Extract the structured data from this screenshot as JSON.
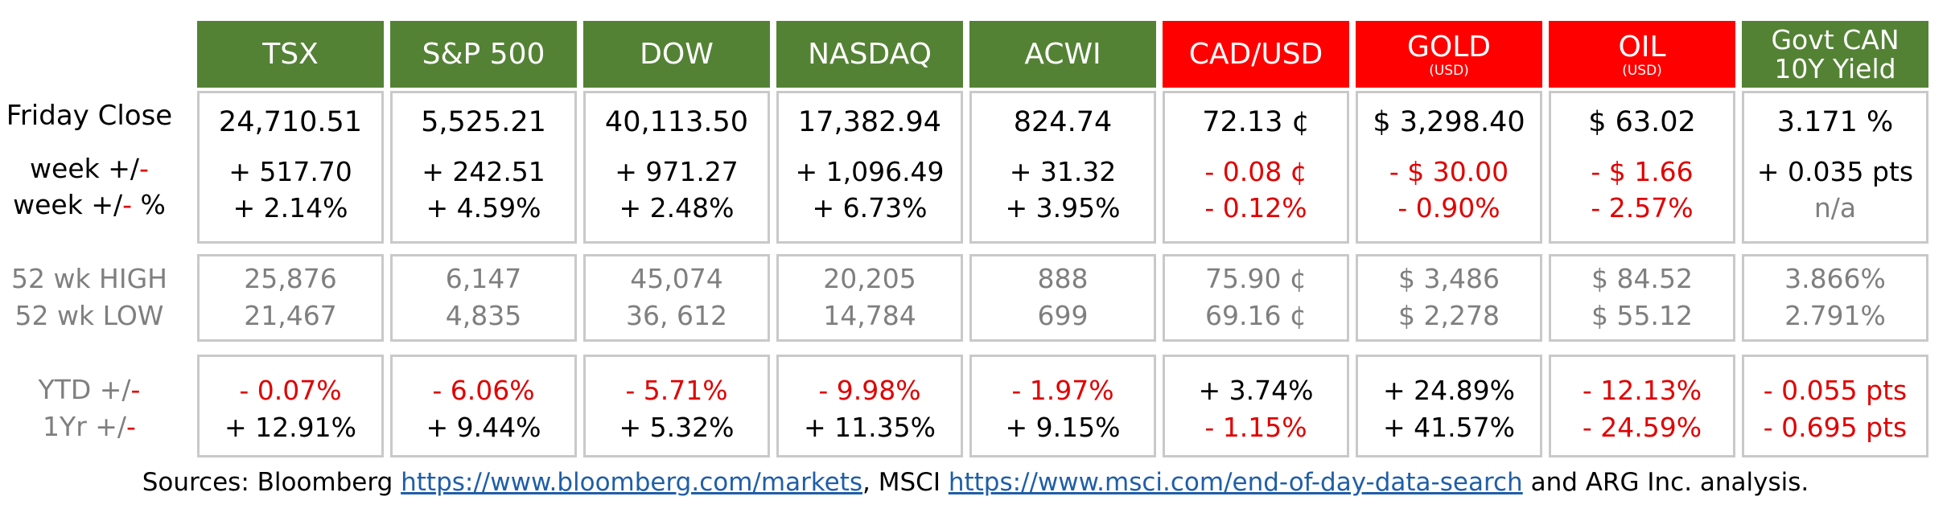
{
  "labels": {
    "friday_close": "Friday Close",
    "week_chg": "week +/",
    "week_chg_dash": "-",
    "week_pct_a": "week +/",
    "week_pct_dash": "-",
    "week_pct_b": " %",
    "high": "52 wk HIGH",
    "low": "52 wk LOW",
    "ytd_a": "YTD +/",
    "ytd_dash": "-",
    "yr_a": "1Yr +/",
    "yr_dash": "-"
  },
  "columns": [
    {
      "name": "TSX",
      "sub": "",
      "close": "24,710.51",
      "week_chg": "+ 517.70",
      "week_pct": "+ 2.14%",
      "high": "25,876",
      "low": "21,467",
      "ytd": "-   0.07%",
      "yr": "+ 12.91%"
    },
    {
      "name": "S&P 500",
      "sub": "",
      "close": "5,525.21",
      "week_chg": "+ 242.51",
      "week_pct": "+ 4.59%",
      "high": "6,147",
      "low": "4,835",
      "ytd": "- 6.06%",
      "yr": "+ 9.44%"
    },
    {
      "name": "DOW",
      "sub": "",
      "close": "40,113.50",
      "week_chg": "+ 971.27",
      "week_pct": "+ 2.48%",
      "high": "45,074",
      "low": "36, 612",
      "ytd": "- 5.71%",
      "yr": "+ 5.32%"
    },
    {
      "name": "NASDAQ",
      "sub": "",
      "close": "17,382.94",
      "week_chg": "+ 1,096.49",
      "week_pct": "+ 6.73%",
      "high": "20,205",
      "low": "14,784",
      "ytd": "-   9.98%",
      "yr": "+ 11.35%"
    },
    {
      "name": "ACWI",
      "sub": "",
      "close": "824.74",
      "week_chg": "+ 31.32",
      "week_pct": "+ 3.95%",
      "high": "888",
      "low": "699",
      "ytd": "- 1.97%",
      "yr": "+ 9.15%"
    },
    {
      "name": "CAD/USD",
      "sub": "",
      "close": "72.13 ¢",
      "week_chg": "- 0.08 ¢",
      "week_pct": "- 0.12%",
      "high": "75.90 ¢",
      "low": "69.16 ¢",
      "ytd": "+ 3.74%",
      "yr": "- 1.15%"
    },
    {
      "name": "GOLD",
      "sub": "(USD)",
      "close": "$ 3,298.40",
      "week_chg": "- $ 30.00",
      "week_pct": "- 0.90%",
      "high": "$ 3,486",
      "low": "$ 2,278",
      "ytd": "+ 24.89%",
      "yr": "+ 41.57%"
    },
    {
      "name": "OIL",
      "sub": "(USD)",
      "close": "$ 63.02",
      "week_chg": "- $ 1.66",
      "week_pct": "- 2.57%",
      "high": "$ 84.52",
      "low": "$ 55.12",
      "ytd": "- 12.13%",
      "yr": "- 24.59%"
    },
    {
      "name": "Govt CAN",
      "sub": "10Y Yield",
      "close": "3.171 %",
      "week_chg": "+ 0.035 pts",
      "week_pct": "n/a",
      "high": "3.866%",
      "low": "2.791%",
      "ytd": "- 0.055 pts",
      "yr": "- 0.695 pts"
    }
  ],
  "sources": {
    "prefix": "Sources: Bloomberg ",
    "link1": "https://www.bloomberg.com/markets",
    "mid": ", MSCI ",
    "link2": "https://www.msci.com/end-of-day-data-search",
    "suffix": " and ARG Inc. analysis."
  },
  "colors": {
    "green_header": "#548235",
    "red_header": "#ff0000",
    "negative": "#e00000",
    "muted": "#7f7f7f",
    "border": "#c9c9c9"
  }
}
